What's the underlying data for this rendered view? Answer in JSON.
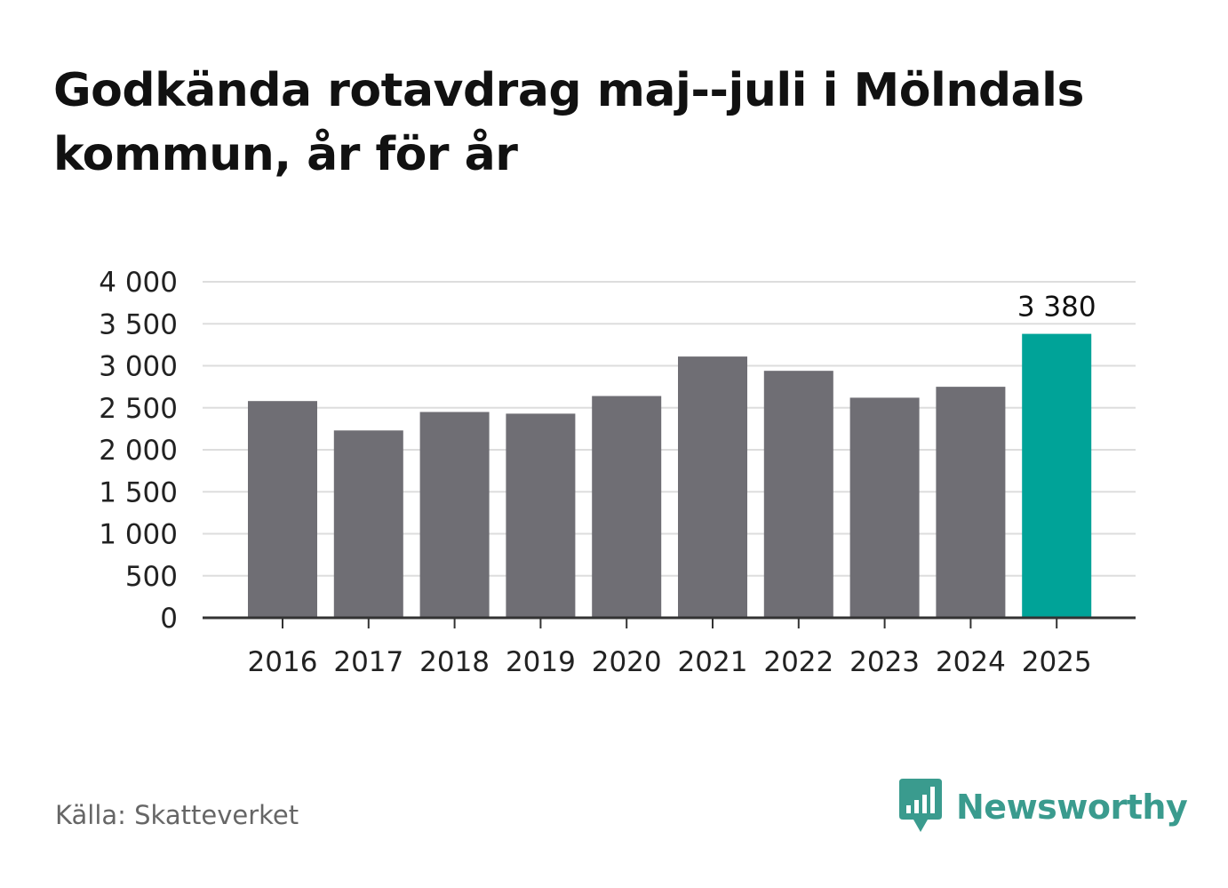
{
  "title": "Godkända rotavdrag maj--juli i Mölndals kommun, år för år",
  "source": "Källa: Skatteverket",
  "brand": {
    "name": "Newsworthy",
    "icon": "bar-chart-speech-bubble-icon",
    "color": "#3a9b8e"
  },
  "colors": {
    "bar": "#6f6e74",
    "highlight": "#00a398",
    "grid": "#dddddd",
    "axis": "#333333",
    "text": "#222222"
  },
  "chart_data": {
    "type": "bar",
    "categories": [
      "2016",
      "2017",
      "2018",
      "2019",
      "2020",
      "2021",
      "2022",
      "2023",
      "2024",
      "2025"
    ],
    "values": [
      2580,
      2230,
      2450,
      2430,
      2640,
      3110,
      2940,
      2620,
      2750,
      3380
    ],
    "highlight_index": 9,
    "data_labels": [
      {
        "index": 9,
        "text": "3 380"
      }
    ],
    "ylim": [
      0,
      4000
    ],
    "yticks": [
      0,
      500,
      1000,
      1500,
      2000,
      2500,
      3000,
      3500,
      4000
    ],
    "ytick_labels": [
      "0",
      "500",
      "1 000",
      "1 500",
      "2 000",
      "2 500",
      "3 000",
      "3 500",
      "4 000"
    ],
    "grid": true,
    "xlabel": "",
    "ylabel": ""
  }
}
